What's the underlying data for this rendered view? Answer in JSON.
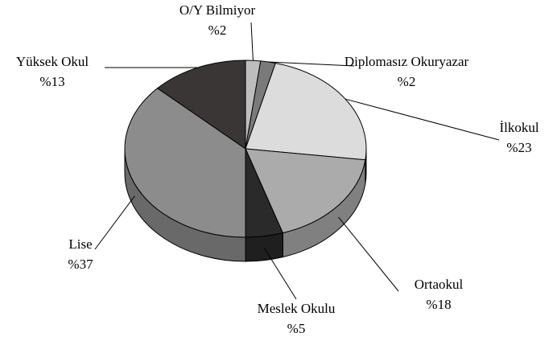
{
  "chart_data": {
    "type": "pie3d",
    "categories": [
      "O/Y Bilmiyor",
      "Diplomasız Okuryazar",
      "İlkokul",
      "Ortaokul",
      "Meslek Okulu",
      "Lise",
      "Yüksek Okul"
    ],
    "values": [
      2,
      2,
      23,
      18,
      5,
      37,
      13
    ],
    "value_labels": [
      "%2",
      "%2",
      "%23",
      "%18",
      "%5",
      "%37",
      "%13"
    ],
    "colors": [
      "#bdbdbd",
      "#7a7a7a",
      "#dcdcdc",
      "#ababab",
      "#2a2a2a",
      "#8c8c8c",
      "#3a3636"
    ]
  }
}
